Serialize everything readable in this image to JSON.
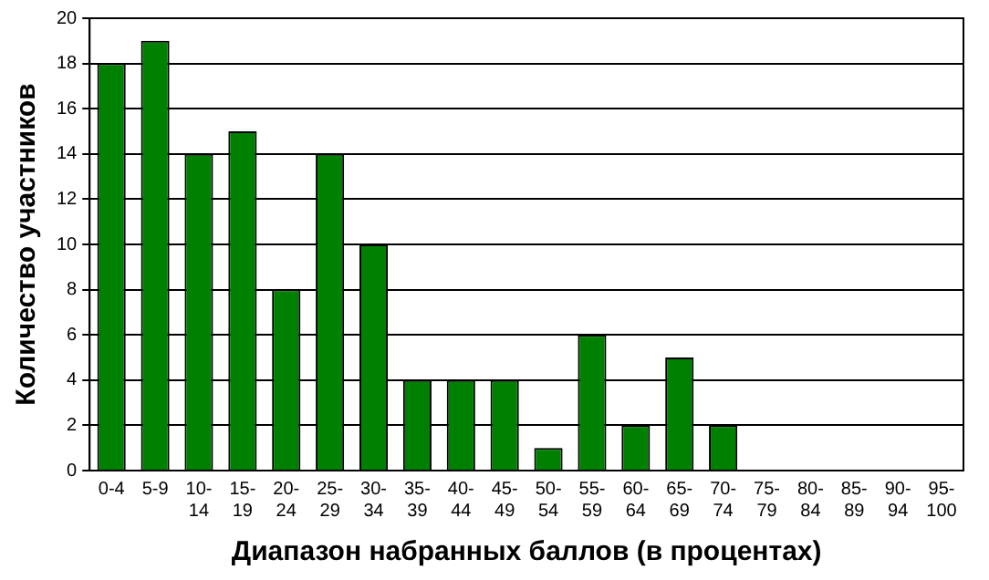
{
  "chart_data": {
    "type": "bar",
    "xlabel": "Диапазон набранных баллов (в процентах)",
    "ylabel": "Количество участников",
    "categories": [
      "0-4",
      "5-9",
      "10-14",
      "15-19",
      "20-24",
      "25-29",
      "30-34",
      "35-39",
      "40-44",
      "45-49",
      "50-54",
      "55-59",
      "60-64",
      "65-69",
      "70-74",
      "75-79",
      "80-84",
      "85-89",
      "90-94",
      "95-100"
    ],
    "values": [
      18,
      19,
      14,
      15,
      8,
      14,
      10,
      4,
      4,
      4,
      1,
      6,
      2,
      5,
      2,
      0,
      0,
      0,
      0,
      0
    ],
    "color": "#008000",
    "ylim": [
      0,
      20
    ],
    "yticks": [
      0,
      2,
      4,
      6,
      8,
      10,
      12,
      14,
      16,
      18,
      20
    ],
    "grid": "y",
    "legend": false
  }
}
